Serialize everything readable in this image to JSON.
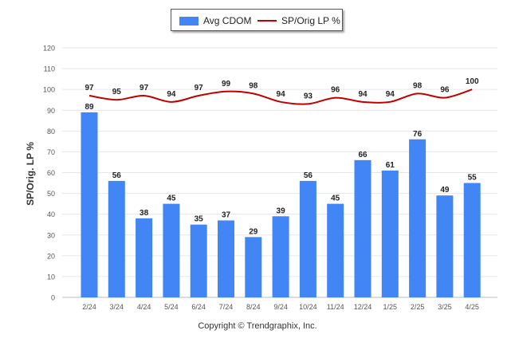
{
  "chart_data": {
    "type": "bar",
    "categories": [
      "2/24",
      "3/24",
      "4/24",
      "5/24",
      "6/24",
      "7/24",
      "8/24",
      "9/24",
      "10/24",
      "11/24",
      "12/24",
      "1/25",
      "2/25",
      "3/25",
      "4/25"
    ],
    "series": [
      {
        "name": "Avg CDOM",
        "type": "bar",
        "color": "#4285f4",
        "values": [
          89,
          56,
          38,
          45,
          35,
          37,
          29,
          39,
          56,
          45,
          66,
          61,
          76,
          49,
          55
        ]
      },
      {
        "name": "SP/Orig LP %",
        "type": "line",
        "color": "#c00000",
        "values": [
          97,
          95,
          97,
          94,
          97,
          99,
          98,
          94,
          93,
          96,
          94,
          94,
          98,
          96,
          100
        ]
      }
    ],
    "ylabel": "SP/Orig. LP %",
    "ylim": [
      0,
      120
    ],
    "yticks": [
      0,
      10,
      20,
      30,
      40,
      50,
      60,
      70,
      80,
      90,
      100,
      110,
      120
    ],
    "grid": true,
    "legend": "top-center"
  },
  "footer": {
    "copyright": "Copyright © Trendgraphix, Inc."
  }
}
